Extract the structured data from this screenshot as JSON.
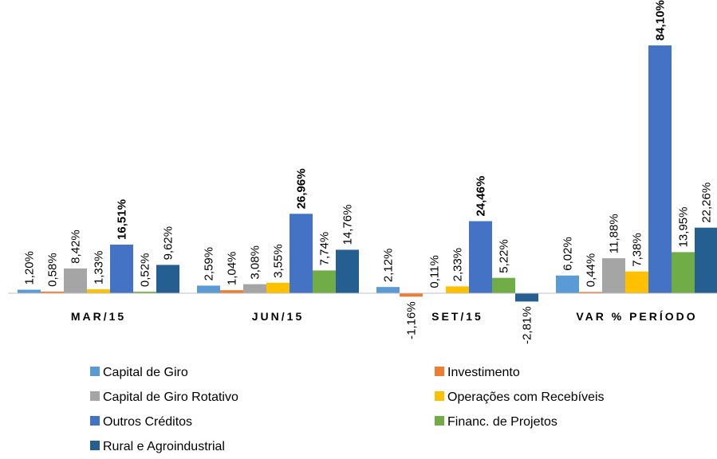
{
  "chart_data": {
    "type": "bar",
    "categories": [
      "MAR/15",
      "JUN/15",
      "SET/15",
      "VAR % PERÍODO"
    ],
    "series": [
      {
        "name": "Capital de Giro",
        "color": "#5b9bd5",
        "values": [
          1.2,
          2.59,
          2.12,
          6.02
        ],
        "value_labels": [
          "1,20%",
          "2,59%",
          "2,12%",
          "6,02%"
        ]
      },
      {
        "name": "Investimento",
        "color": "#ed7d31",
        "values": [
          0.58,
          1.04,
          -1.16,
          0.44
        ],
        "value_labels": [
          "0,58%",
          "1,04%",
          "-1,16%",
          "0,44%"
        ]
      },
      {
        "name": "Capital de Giro Rotativo",
        "color": "#a5a5a5",
        "values": [
          8.42,
          3.08,
          0.11,
          11.88
        ],
        "value_labels": [
          "8,42%",
          "3,08%",
          "0,11%",
          "11,88%"
        ]
      },
      {
        "name": "Operações com Recebíveis",
        "color": "#ffc000",
        "values": [
          1.33,
          3.55,
          2.33,
          7.38
        ],
        "value_labels": [
          "1,33%",
          "3,55%",
          "2,33%",
          "7,38%"
        ]
      },
      {
        "name": "Outros Créditos",
        "color": "#4472c4",
        "values": [
          16.51,
          26.96,
          24.46,
          84.1
        ],
        "value_labels": [
          "16,51%",
          "26,96%",
          "24,46%",
          "84,10%"
        ]
      },
      {
        "name": "Financ. de Projetos",
        "color": "#70ad47",
        "values": [
          0.52,
          7.74,
          5.22,
          13.95
        ],
        "value_labels": [
          "0,52%",
          "7,74%",
          "5,22%",
          "13,95%"
        ]
      },
      {
        "name": "Rural e Agroindustrial",
        "color": "#255e91",
        "values": [
          9.62,
          14.76,
          -2.81,
          22.26
        ],
        "value_labels": [
          "9,62%",
          "14,76%",
          "-2,81%",
          "22,26%"
        ]
      }
    ]
  }
}
